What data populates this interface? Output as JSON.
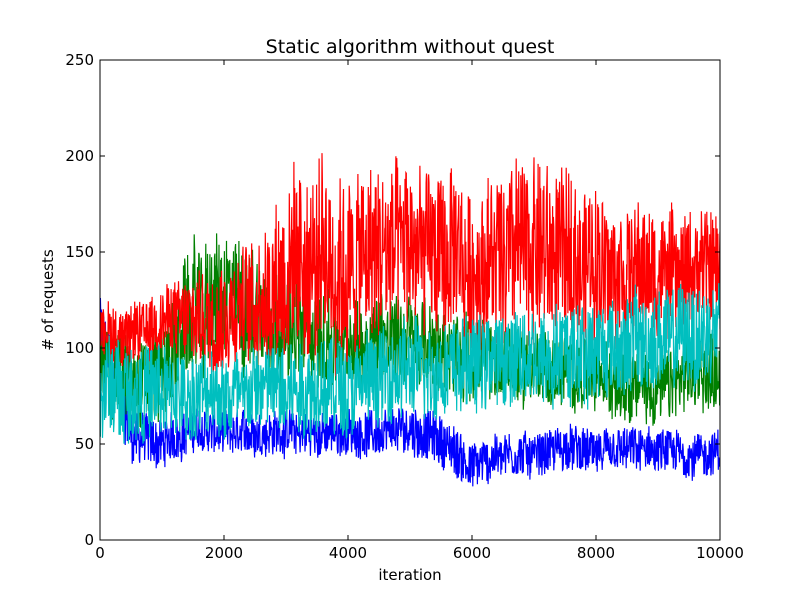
{
  "chart_data": {
    "type": "line",
    "title": "Static algorithm without quest",
    "xlabel": "iteration",
    "ylabel": "# of requests",
    "xlim": [
      0,
      10000
    ],
    "ylim": [
      0,
      250
    ],
    "x_ticks": [
      0,
      2000,
      4000,
      6000,
      8000,
      10000
    ],
    "y_ticks": [
      0,
      50,
      100,
      150,
      200,
      250
    ],
    "x_tick_labels": [
      "0",
      "2000",
      "4000",
      "6000",
      "8000",
      "10000"
    ],
    "y_tick_labels": [
      "0",
      "50",
      "100",
      "150",
      "200",
      "250"
    ],
    "grid": false,
    "legend": "none",
    "x": [
      0,
      500,
      1000,
      1500,
      2000,
      2500,
      3000,
      3500,
      4000,
      4500,
      5000,
      5500,
      6000,
      6500,
      7000,
      7500,
      8000,
      8500,
      9000,
      9500,
      10000
    ],
    "series": [
      {
        "color": "#0000ff",
        "center": [
          110,
          55,
          50,
          58,
          55,
          56,
          56,
          55,
          56,
          55,
          58,
          52,
          38,
          45,
          44,
          48,
          45,
          47,
          46,
          44,
          45
        ],
        "spread": [
          20,
          18,
          16,
          14,
          14,
          14,
          14,
          14,
          14,
          14,
          16,
          16,
          16,
          14,
          14,
          14,
          14,
          14,
          14,
          14,
          14
        ]
      },
      {
        "color": "#008000",
        "center": [
          95,
          82,
          88,
          120,
          125,
          120,
          112,
          105,
          100,
          108,
          105,
          98,
          95,
          92,
          90,
          88,
          85,
          82,
          78,
          85,
          90
        ],
        "spread": [
          28,
          28,
          30,
          40,
          42,
          40,
          35,
          32,
          28,
          28,
          28,
          26,
          26,
          24,
          24,
          22,
          22,
          22,
          22,
          24,
          24
        ]
      },
      {
        "color": "#ff0000",
        "center": [
          110,
          105,
          115,
          115,
          118,
          125,
          140,
          145,
          140,
          150,
          152,
          148,
          140,
          150,
          152,
          148,
          145,
          140,
          138,
          140,
          142
        ],
        "spread": [
          18,
          20,
          20,
          30,
          34,
          40,
          55,
          60,
          60,
          55,
          55,
          52,
          50,
          55,
          58,
          52,
          48,
          42,
          38,
          36,
          36
        ]
      },
      {
        "color": "#00bfbf",
        "center": [
          80,
          78,
          76,
          75,
          76,
          78,
          80,
          80,
          80,
          84,
          88,
          90,
          92,
          95,
          95,
          98,
          100,
          102,
          104,
          106,
          108
        ],
        "spread": [
          32,
          32,
          30,
          28,
          28,
          28,
          30,
          30,
          30,
          30,
          30,
          30,
          30,
          30,
          32,
          32,
          32,
          32,
          32,
          32,
          32
        ]
      }
    ]
  }
}
